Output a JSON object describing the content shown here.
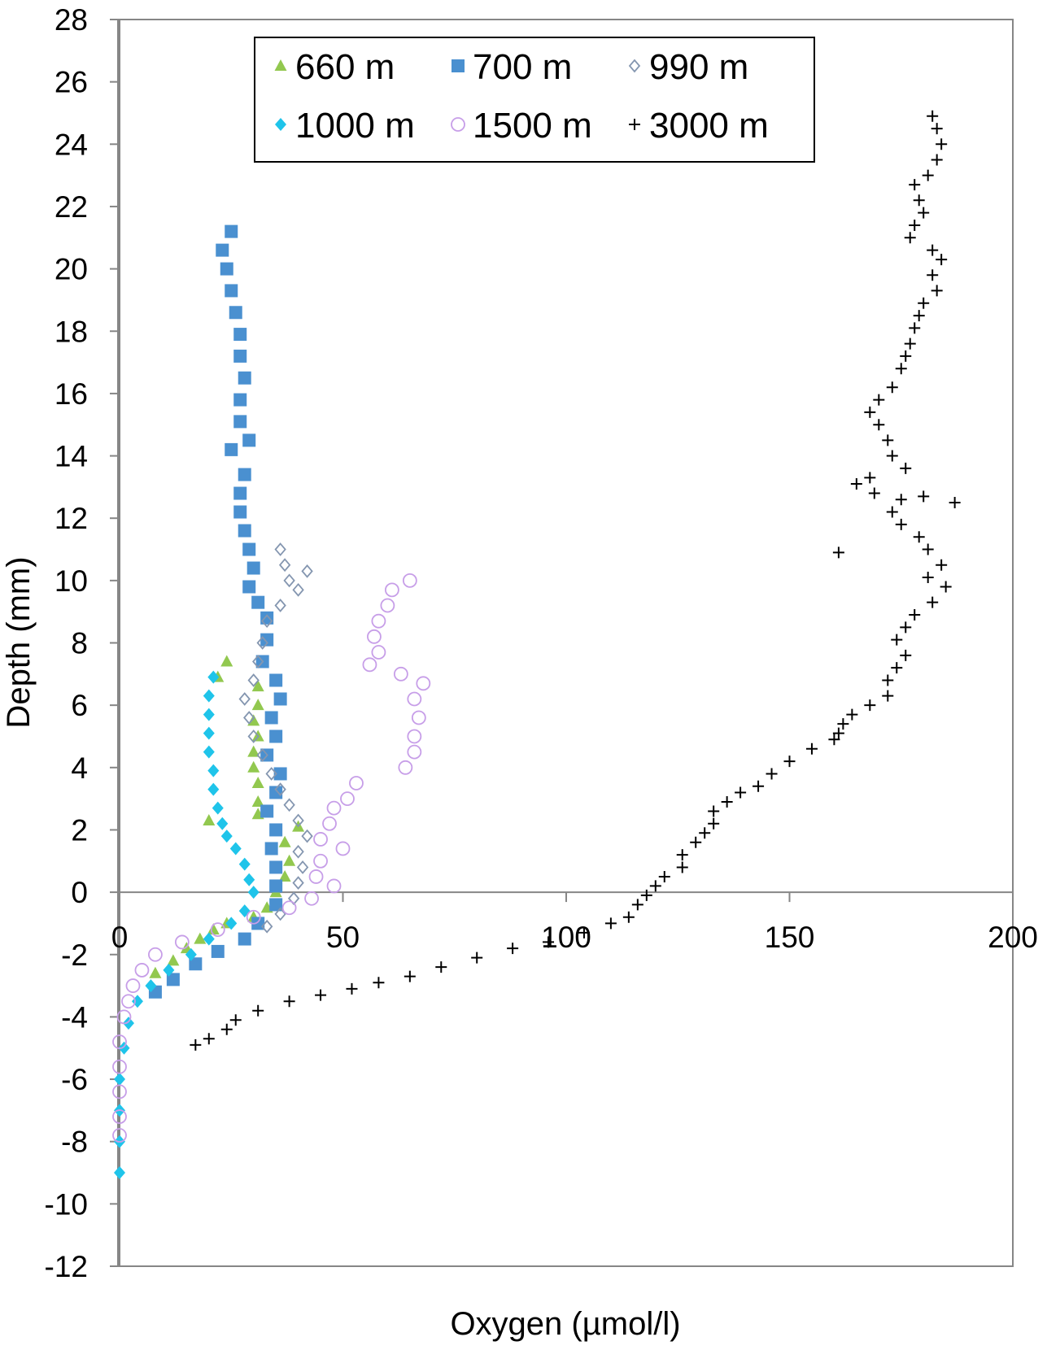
{
  "chart_data": {
    "type": "scatter",
    "xlabel": "Oxygen (µmol/l)",
    "ylabel": "Depth (mm)",
    "xlim": [
      0,
      200
    ],
    "ylim": [
      -12,
      28
    ],
    "x_ticks": [
      0,
      50,
      100,
      150,
      200
    ],
    "y_ticks": [
      -12,
      -10,
      -8,
      -6,
      -4,
      -2,
      0,
      2,
      4,
      6,
      8,
      10,
      12,
      14,
      16,
      18,
      20,
      22,
      24,
      26,
      28
    ],
    "grid": false,
    "legend_position": "top-center",
    "series": [
      {
        "name": "660 m",
        "marker": "triangle",
        "color": "#92c84f",
        "points": [
          [
            24,
            7.4
          ],
          [
            22,
            6.9
          ],
          [
            31,
            6.6
          ],
          [
            31,
            6.0
          ],
          [
            30,
            5.5
          ],
          [
            31,
            5.0
          ],
          [
            30,
            4.5
          ],
          [
            30,
            4.0
          ],
          [
            31,
            3.5
          ],
          [
            31,
            2.9
          ],
          [
            31,
            2.5
          ],
          [
            20,
            2.3
          ],
          [
            40,
            2.1
          ],
          [
            37,
            1.6
          ],
          [
            38,
            1.0
          ],
          [
            37,
            0.5
          ],
          [
            35,
            0.0
          ],
          [
            33,
            -0.5
          ],
          [
            30,
            -0.8
          ],
          [
            24,
            -1.0
          ],
          [
            21,
            -1.2
          ],
          [
            18,
            -1.5
          ],
          [
            15,
            -1.8
          ],
          [
            12,
            -2.2
          ],
          [
            8,
            -2.6
          ]
        ]
      },
      {
        "name": "700 m",
        "marker": "square",
        "color": "#4a90d0",
        "points": [
          [
            25,
            21.2
          ],
          [
            23,
            20.6
          ],
          [
            24,
            20.0
          ],
          [
            25,
            19.3
          ],
          [
            26,
            18.6
          ],
          [
            27,
            17.9
          ],
          [
            27,
            17.2
          ],
          [
            28,
            16.5
          ],
          [
            27,
            15.8
          ],
          [
            27,
            15.1
          ],
          [
            29,
            14.5
          ],
          [
            25,
            14.2
          ],
          [
            28,
            13.4
          ],
          [
            27,
            12.8
          ],
          [
            27,
            12.2
          ],
          [
            28,
            11.6
          ],
          [
            29,
            11.0
          ],
          [
            30,
            10.4
          ],
          [
            29,
            9.8
          ],
          [
            31,
            9.3
          ],
          [
            33,
            8.8
          ],
          [
            33,
            8.1
          ],
          [
            32,
            7.4
          ],
          [
            35,
            6.8
          ],
          [
            36,
            6.2
          ],
          [
            34,
            5.6
          ],
          [
            35,
            5.0
          ],
          [
            33,
            4.4
          ],
          [
            36,
            3.8
          ],
          [
            35,
            3.2
          ],
          [
            33,
            2.6
          ],
          [
            35,
            2.0
          ],
          [
            34,
            1.4
          ],
          [
            35,
            0.8
          ],
          [
            35,
            0.2
          ],
          [
            35,
            -0.4
          ],
          [
            31,
            -1.0
          ],
          [
            28,
            -1.5
          ],
          [
            22,
            -1.9
          ],
          [
            17,
            -2.3
          ],
          [
            12,
            -2.8
          ],
          [
            8,
            -3.2
          ]
        ]
      },
      {
        "name": "990 m",
        "marker": "diamond-open",
        "color": "#8496b0",
        "points": [
          [
            36,
            11.0
          ],
          [
            37,
            10.5
          ],
          [
            38,
            10.0
          ],
          [
            42,
            10.3
          ],
          [
            40,
            9.7
          ],
          [
            36,
            9.2
          ],
          [
            33,
            8.7
          ],
          [
            32,
            8.0
          ],
          [
            31,
            7.4
          ],
          [
            30,
            6.8
          ],
          [
            28,
            6.2
          ],
          [
            29,
            5.6
          ],
          [
            30,
            5.0
          ],
          [
            32,
            4.4
          ],
          [
            34,
            3.8
          ],
          [
            36,
            3.3
          ],
          [
            38,
            2.8
          ],
          [
            40,
            2.3
          ],
          [
            42,
            1.8
          ],
          [
            40,
            1.3
          ],
          [
            41,
            0.8
          ],
          [
            40,
            0.3
          ],
          [
            39,
            -0.2
          ],
          [
            36,
            -0.7
          ],
          [
            33,
            -1.1
          ]
        ]
      },
      {
        "name": "1000 m",
        "marker": "diamond",
        "color": "#1fc4ea",
        "points": [
          [
            21,
            6.9
          ],
          [
            20,
            6.3
          ],
          [
            20,
            5.7
          ],
          [
            20,
            5.1
          ],
          [
            20,
            4.5
          ],
          [
            21,
            3.9
          ],
          [
            21,
            3.3
          ],
          [
            22,
            2.7
          ],
          [
            23,
            2.2
          ],
          [
            24,
            1.8
          ],
          [
            26,
            1.4
          ],
          [
            28,
            0.9
          ],
          [
            29,
            0.4
          ],
          [
            30,
            0.0
          ],
          [
            28,
            -0.6
          ],
          [
            25,
            -1.0
          ],
          [
            20,
            -1.5
          ],
          [
            16,
            -2.0
          ],
          [
            11,
            -2.5
          ],
          [
            7,
            -3.0
          ],
          [
            4,
            -3.5
          ],
          [
            2,
            -4.2
          ],
          [
            1,
            -5.0
          ],
          [
            0,
            -6.0
          ],
          [
            0,
            -7.0
          ],
          [
            0,
            -8.0
          ],
          [
            0,
            -9.0
          ]
        ]
      },
      {
        "name": "1500 m",
        "marker": "circle-open",
        "color": "#c79ee8",
        "points": [
          [
            65,
            10.0
          ],
          [
            61,
            9.7
          ],
          [
            60,
            9.2
          ],
          [
            58,
            8.7
          ],
          [
            57,
            8.2
          ],
          [
            58,
            7.7
          ],
          [
            56,
            7.3
          ],
          [
            63,
            7.0
          ],
          [
            68,
            6.7
          ],
          [
            66,
            6.2
          ],
          [
            67,
            5.6
          ],
          [
            66,
            5.0
          ],
          [
            66,
            4.5
          ],
          [
            64,
            4.0
          ],
          [
            53,
            3.5
          ],
          [
            51,
            3.0
          ],
          [
            48,
            2.7
          ],
          [
            47,
            2.2
          ],
          [
            45,
            1.7
          ],
          [
            50,
            1.4
          ],
          [
            45,
            1.0
          ],
          [
            44,
            0.5
          ],
          [
            48,
            0.2
          ],
          [
            43,
            -0.2
          ],
          [
            38,
            -0.5
          ],
          [
            30,
            -0.8
          ],
          [
            22,
            -1.2
          ],
          [
            14,
            -1.6
          ],
          [
            8,
            -2.0
          ],
          [
            5,
            -2.5
          ],
          [
            3,
            -3.0
          ],
          [
            2,
            -3.5
          ],
          [
            1,
            -4.0
          ],
          [
            0,
            -4.8
          ],
          [
            0,
            -5.6
          ],
          [
            0,
            -6.4
          ],
          [
            0,
            -7.2
          ],
          [
            0,
            -7.8
          ]
        ]
      },
      {
        "name": "3000 m",
        "marker": "plus",
        "color": "#000000",
        "points": [
          [
            182,
            24.9
          ],
          [
            183,
            24.5
          ],
          [
            184,
            24.0
          ],
          [
            183,
            23.5
          ],
          [
            181,
            23.0
          ],
          [
            178,
            22.7
          ],
          [
            179,
            22.2
          ],
          [
            180,
            21.8
          ],
          [
            178,
            21.4
          ],
          [
            177,
            21.0
          ],
          [
            182,
            20.6
          ],
          [
            184,
            20.3
          ],
          [
            182,
            19.8
          ],
          [
            183,
            19.3
          ],
          [
            180,
            18.9
          ],
          [
            179,
            18.5
          ],
          [
            178,
            18.1
          ],
          [
            177,
            17.6
          ],
          [
            176,
            17.2
          ],
          [
            175,
            16.8
          ],
          [
            173,
            16.2
          ],
          [
            170,
            15.8
          ],
          [
            168,
            15.4
          ],
          [
            170,
            15.0
          ],
          [
            172,
            14.5
          ],
          [
            173,
            14.0
          ],
          [
            176,
            13.6
          ],
          [
            168,
            13.3
          ],
          [
            165,
            13.1
          ],
          [
            169,
            12.8
          ],
          [
            175,
            12.6
          ],
          [
            180,
            12.7
          ],
          [
            187,
            12.5
          ],
          [
            173,
            12.2
          ],
          [
            175,
            11.8
          ],
          [
            179,
            11.4
          ],
          [
            181,
            11.0
          ],
          [
            161,
            10.9
          ],
          [
            184,
            10.5
          ],
          [
            181,
            10.1
          ],
          [
            185,
            9.8
          ],
          [
            182,
            9.3
          ],
          [
            178,
            8.9
          ],
          [
            176,
            8.5
          ],
          [
            174,
            8.1
          ],
          [
            176,
            7.6
          ],
          [
            174,
            7.2
          ],
          [
            172,
            6.8
          ],
          [
            172,
            6.3
          ],
          [
            168,
            6.0
          ],
          [
            164,
            5.7
          ],
          [
            162,
            5.4
          ],
          [
            161,
            5.1
          ],
          [
            160,
            4.9
          ],
          [
            155,
            4.6
          ],
          [
            150,
            4.2
          ],
          [
            146,
            3.8
          ],
          [
            143,
            3.4
          ],
          [
            139,
            3.2
          ],
          [
            136,
            2.9
          ],
          [
            133,
            2.6
          ],
          [
            133,
            2.2
          ],
          [
            131,
            1.9
          ],
          [
            129,
            1.6
          ],
          [
            126,
            1.2
          ],
          [
            126,
            0.8
          ],
          [
            122,
            0.5
          ],
          [
            120,
            0.2
          ],
          [
            118,
            -0.1
          ],
          [
            116,
            -0.4
          ],
          [
            114,
            -0.8
          ],
          [
            110,
            -1.0
          ],
          [
            104,
            -1.3
          ],
          [
            96,
            -1.6
          ],
          [
            88,
            -1.8
          ],
          [
            80,
            -2.1
          ],
          [
            72,
            -2.4
          ],
          [
            65,
            -2.7
          ],
          [
            58,
            -2.9
          ],
          [
            52,
            -3.1
          ],
          [
            45,
            -3.3
          ],
          [
            38,
            -3.5
          ],
          [
            31,
            -3.8
          ],
          [
            26,
            -4.1
          ],
          [
            24,
            -4.4
          ],
          [
            20,
            -4.7
          ],
          [
            17,
            -4.9
          ]
        ]
      }
    ]
  }
}
